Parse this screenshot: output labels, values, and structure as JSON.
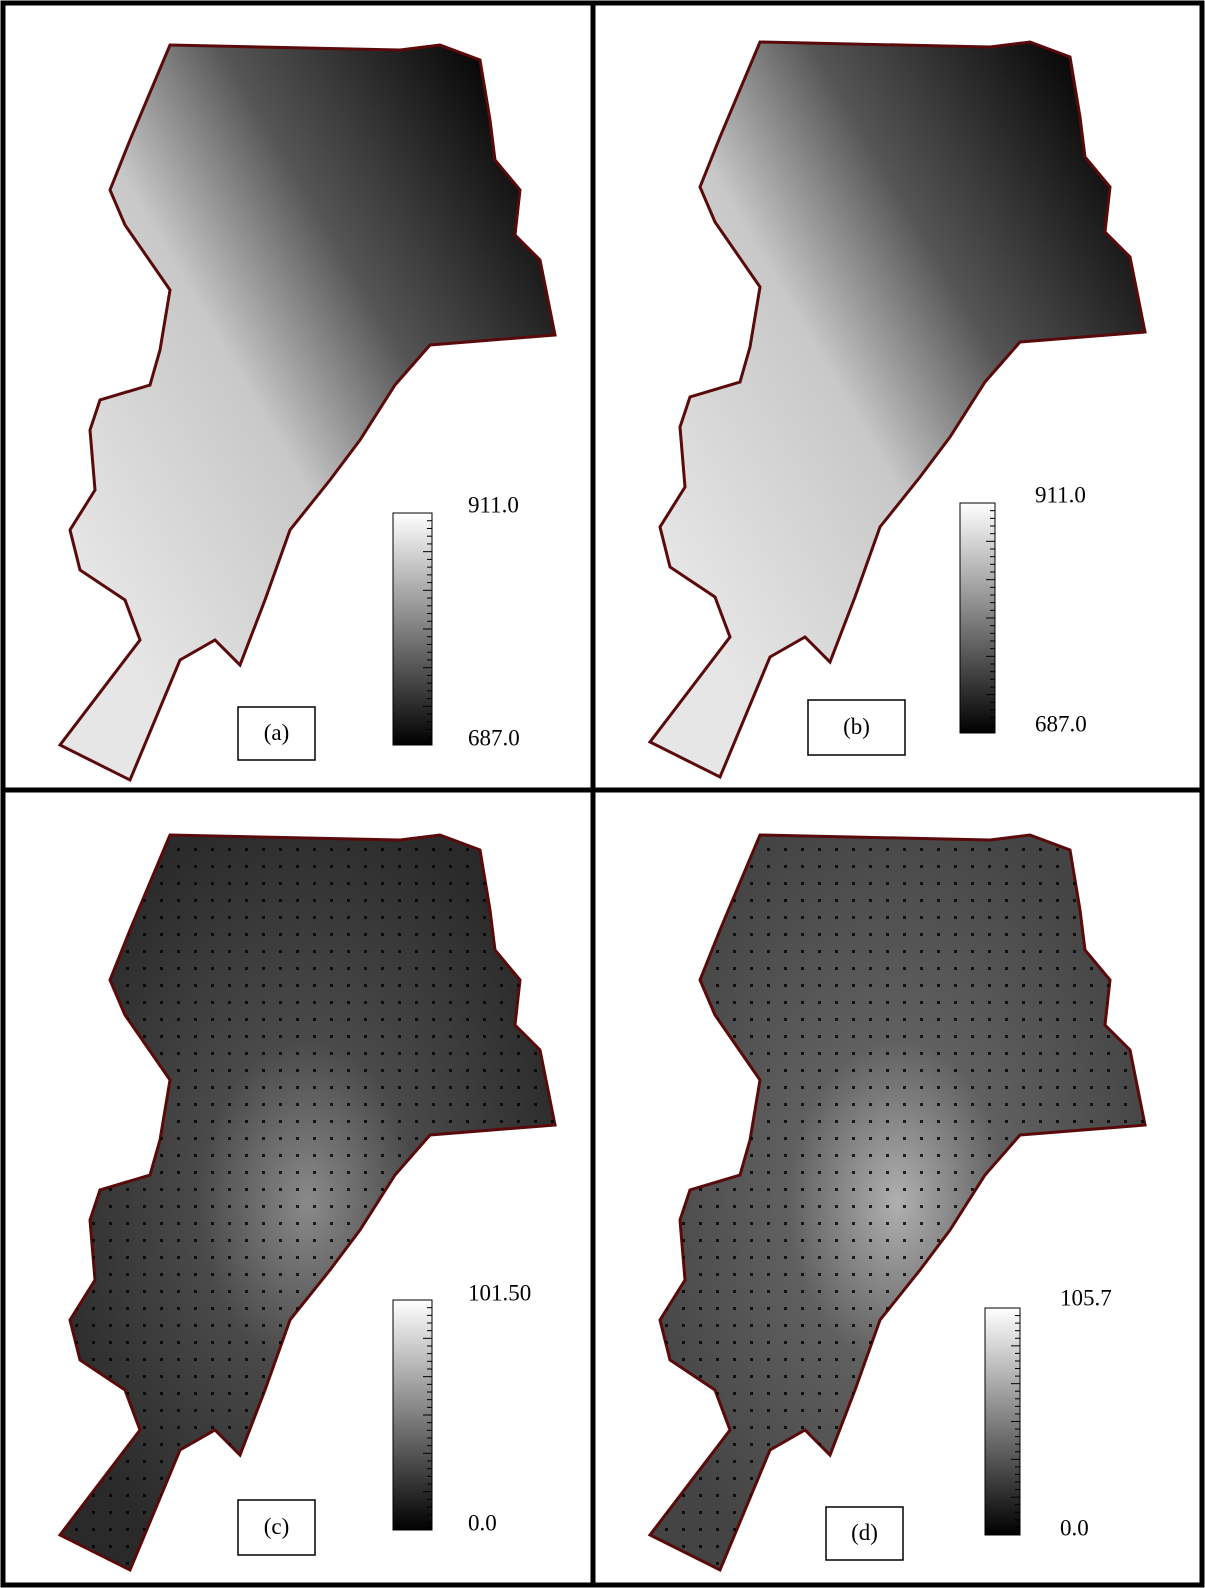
{
  "panels": [
    {
      "label": "(a)",
      "legend": {
        "max": "911.0",
        "min": "687.0"
      }
    },
    {
      "label": "(b)",
      "legend": {
        "max": "911.0",
        "min": "687.0"
      }
    },
    {
      "label": "(c)",
      "legend": {
        "max": "101.50",
        "min": "0.0"
      }
    },
    {
      "label": "(d)",
      "legend": {
        "max": "105.7",
        "min": "0.0"
      }
    }
  ]
}
